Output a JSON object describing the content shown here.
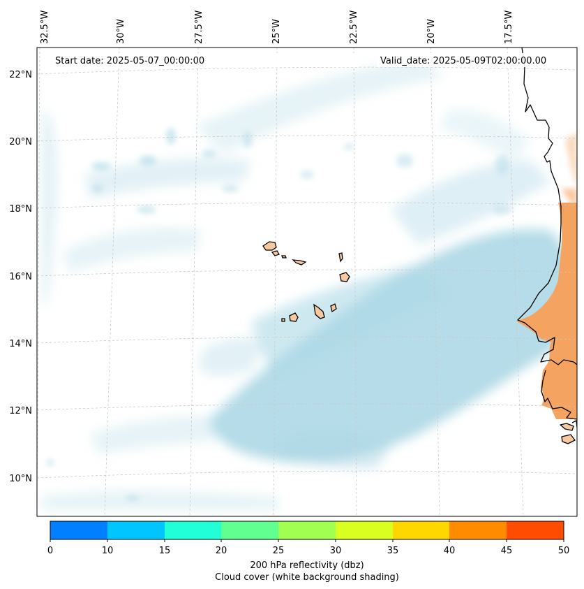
{
  "start_date": "Start date: 2025-05-07_00:00:00",
  "valid_date": "Valid_date: 2025-05-09T02:00:00.00",
  "lon_labels": [
    "32.5°W",
    "30°W",
    "27.5°W",
    "25°W",
    "22.5°W",
    "20°W",
    "17.5°W"
  ],
  "lat_labels": [
    "22°N",
    "20°N",
    "18°N",
    "16°N",
    "14°N",
    "12°N",
    "10°N"
  ],
  "colorbar": {
    "ticks": [
      "0",
      "10",
      "15",
      "20",
      "25",
      "30",
      "35",
      "40",
      "45",
      "50"
    ],
    "colors": [
      "#0080ff",
      "#00c5ff",
      "#20ffd8",
      "#60ff90",
      "#a0ff50",
      "#d8ff20",
      "#ffd700",
      "#ff8c00",
      "#ff4c00"
    ],
    "label_line1": "200 hPa reflectivity (dbz)",
    "label_line2": "Cloud cover (white background shading)"
  },
  "colors": {
    "cloud": "#add8e6",
    "land": "#f4a460",
    "island_fill": "#f8c9a0",
    "coast": "#000000",
    "grid": "#c8c8c8"
  }
}
